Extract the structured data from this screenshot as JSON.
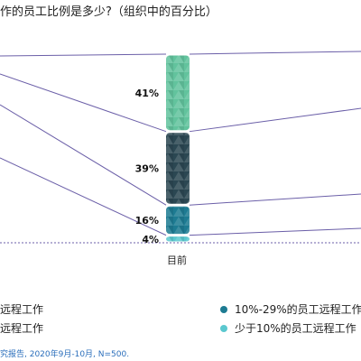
{
  "title": "作的员工比例是多少?（组织中的百分比）",
  "chart_data": {
    "type": "bar",
    "stacked": true,
    "categories": [
      "目前"
    ],
    "series": [
      {
        "name": "少于10%的员工远程工作",
        "values": [
          4
        ],
        "label": "4%",
        "color": "#5bc8cf"
      },
      {
        "name": "10%-29%的员工远程工作",
        "values": [
          16
        ],
        "label": "16%",
        "color": "#1d7b92"
      },
      {
        "name": "远程工作",
        "values": [
          39
        ],
        "label": "39%",
        "color": "#2b4752"
      },
      {
        "name": "远程工作",
        "values": [
          41
        ],
        "label": "41%",
        "color": "#62c39d"
      }
    ],
    "ylim": [
      0,
      100
    ]
  },
  "legend": [
    {
      "label": "远程工作",
      "color": "#62c39d"
    },
    {
      "label": "10%-29%的员工远程工作",
      "color": "#1d7b92"
    },
    {
      "label": "远程工作",
      "color": "#2b4752"
    },
    {
      "label": "少于10%的员工远程工作",
      "color": "#5bc8cf"
    }
  ],
  "source": "究报告, 2020年9月-10月, N=500."
}
